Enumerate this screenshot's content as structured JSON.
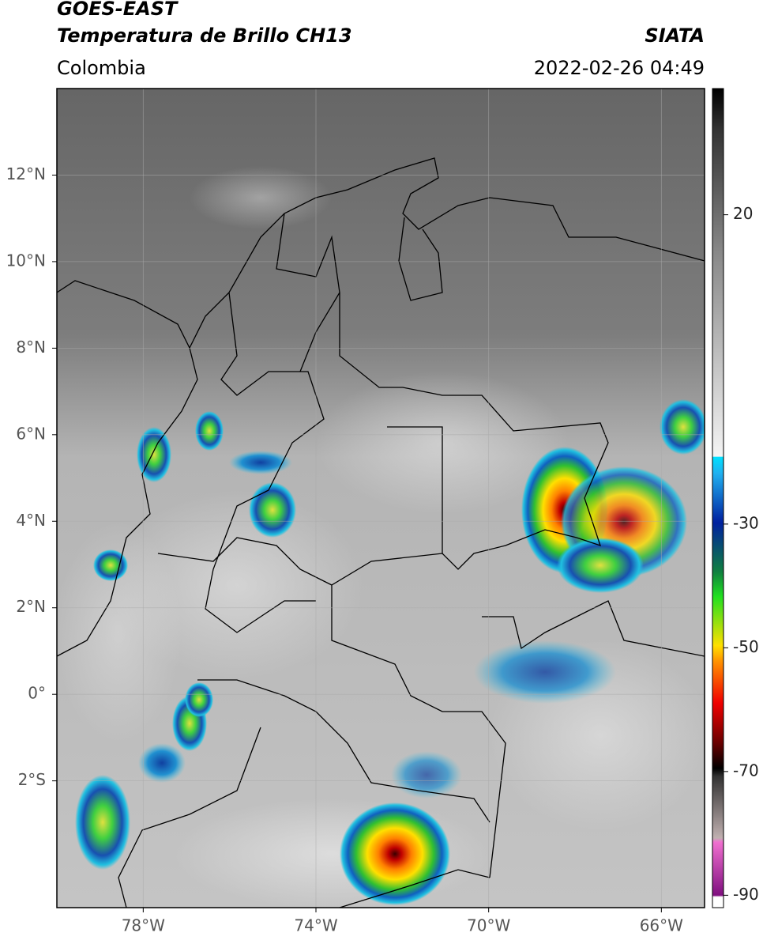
{
  "header": {
    "title": "GOES-EAST",
    "subtitle": "Temperatura de Brillo CH13",
    "source": "SIATA",
    "region": "Colombia",
    "datetime": "2022-02-26 04:49"
  },
  "map": {
    "xlim": [
      -80,
      -65
    ],
    "ylim": [
      -4.93,
      14
    ],
    "xticks": [
      {
        "value": -78,
        "label": "78°W"
      },
      {
        "value": -74,
        "label": "74°W"
      },
      {
        "value": -70,
        "label": "70°W"
      },
      {
        "value": -66,
        "label": "66°W"
      }
    ],
    "yticks": [
      {
        "value": 12,
        "label": "12°N"
      },
      {
        "value": 10,
        "label": "10°N"
      },
      {
        "value": 8,
        "label": "8°N"
      },
      {
        "value": 6,
        "label": "6°N"
      },
      {
        "value": 4,
        "label": "4°N"
      },
      {
        "value": 2,
        "label": "2°N"
      },
      {
        "value": 0,
        "label": "0°"
      },
      {
        "value": -2,
        "label": "2°S"
      }
    ]
  },
  "colorbar": {
    "lim": [
      -92,
      40.4
    ],
    "ticks": [
      20,
      -30,
      -50,
      -70,
      -90
    ]
  }
}
